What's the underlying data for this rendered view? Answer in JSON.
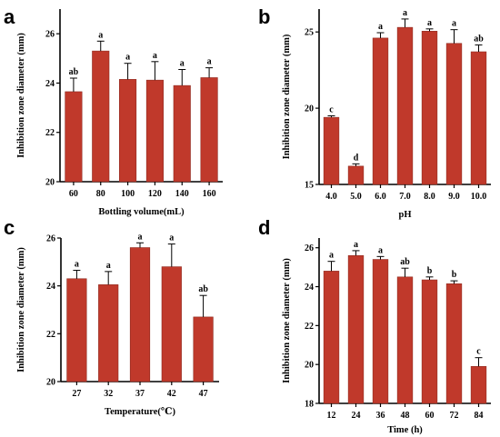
{
  "colors": {
    "bar": "#c0392b",
    "bar_edge": "#8e2a1f",
    "axis": "#000000"
  },
  "chart_data": [
    {
      "type": "bar",
      "panel": "a",
      "xlabel": "Bottling volume(mL)",
      "ylabel": "Inhibition zone diameter (mm)",
      "categories": [
        "60",
        "80",
        "100",
        "120",
        "140",
        "160"
      ],
      "values": [
        23.65,
        25.3,
        24.15,
        24.12,
        23.9,
        24.22
      ],
      "errors": [
        0.55,
        0.4,
        0.65,
        0.75,
        0.65,
        0.4
      ],
      "labels": [
        "ab",
        "a",
        "a",
        "a",
        "a",
        "a"
      ],
      "ylim": [
        20,
        27
      ],
      "yticks": [
        20,
        22,
        24,
        26
      ]
    },
    {
      "type": "bar",
      "panel": "b",
      "xlabel": "pH",
      "ylabel": "Inhibition zone diameter (mm)",
      "categories": [
        "4.0",
        "5.0",
        "6.0",
        "7.0",
        "8.0",
        "9.0",
        "10.0"
      ],
      "values": [
        19.4,
        16.2,
        24.6,
        25.3,
        25.05,
        24.25,
        23.7
      ],
      "errors": [
        0.1,
        0.15,
        0.35,
        0.55,
        0.15,
        0.9,
        0.45
      ],
      "labels": [
        "c",
        "d",
        "a",
        "a",
        "a",
        "a",
        "ab"
      ],
      "ylim": [
        15,
        26.5
      ],
      "yticks": [
        15,
        20,
        25
      ]
    },
    {
      "type": "bar",
      "panel": "c",
      "xlabel": "Temperature(℃)",
      "ylabel": "Inhibition zone diameter (mm)",
      "categories": [
        "27",
        "32",
        "37",
        "42",
        "47"
      ],
      "values": [
        24.3,
        24.05,
        25.6,
        24.8,
        22.7
      ],
      "errors": [
        0.35,
        0.55,
        0.2,
        0.95,
        0.9
      ],
      "labels": [
        "a",
        "a",
        "a",
        "a",
        "ab"
      ],
      "ylim": [
        20,
        26
      ],
      "yticks": [
        20,
        22,
        24,
        26
      ]
    },
    {
      "type": "bar",
      "panel": "d",
      "xlabel": "Time (h)",
      "ylabel": "Inhibition zone diameter (mm)",
      "categories": [
        "12",
        "24",
        "36",
        "48",
        "60",
        "72",
        "84"
      ],
      "values": [
        24.8,
        25.6,
        25.4,
        24.5,
        24.35,
        24.15,
        19.9
      ],
      "errors": [
        0.5,
        0.25,
        0.15,
        0.45,
        0.15,
        0.15,
        0.45
      ],
      "labels": [
        "a",
        "a",
        "a",
        "ab",
        "b",
        "b",
        "c"
      ],
      "ylim": [
        18,
        26.5
      ],
      "yticks": [
        18,
        20,
        22,
        24,
        26
      ]
    }
  ]
}
